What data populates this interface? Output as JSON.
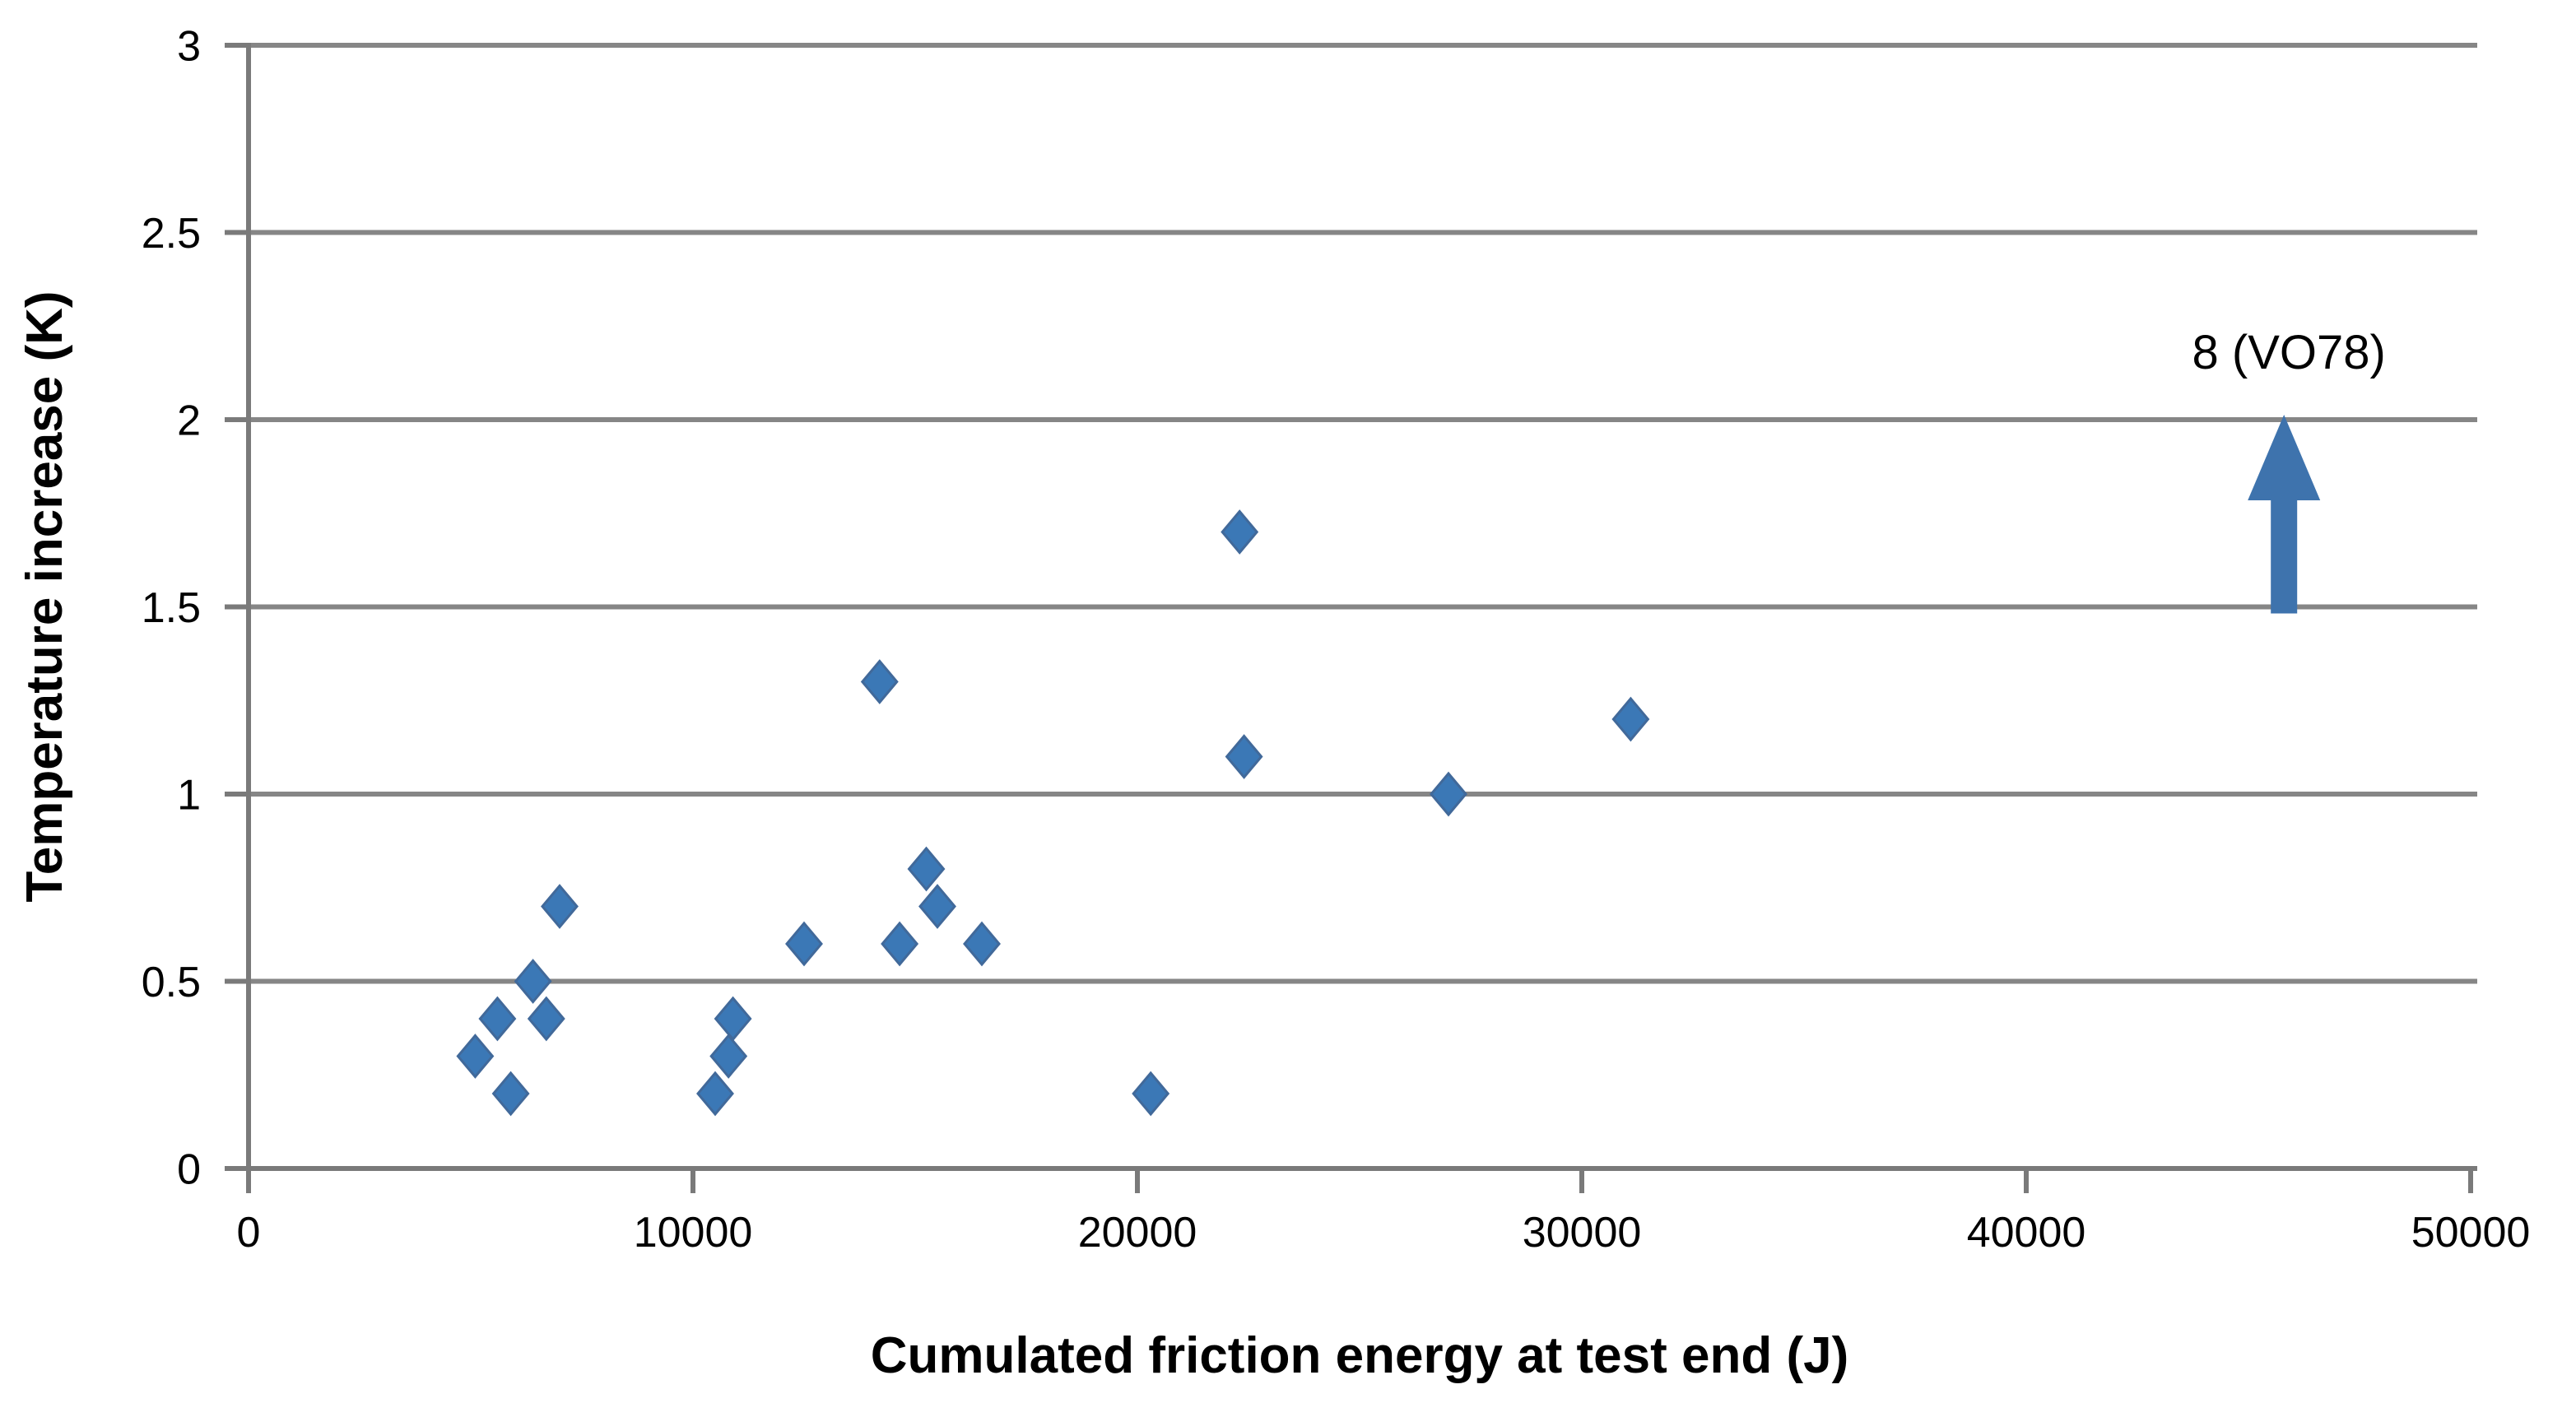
{
  "chart_data": {
    "type": "scatter",
    "title": "",
    "xlabel": "Cumulated friction energy at test end (J)",
    "ylabel": "Temperature increase (K)",
    "xlim": [
      0,
      50000
    ],
    "ylim": [
      0,
      3
    ],
    "x_tick_values": [
      0,
      10000,
      20000,
      30000,
      40000,
      50000
    ],
    "x_tick_labels": [
      "0",
      "10000",
      "20000",
      "30000",
      "40000",
      "50000"
    ],
    "y_tick_values": [
      0,
      0.5,
      1,
      1.5,
      2,
      2.5,
      3
    ],
    "y_tick_labels": [
      "0",
      "0.5",
      "1",
      "1.5",
      "2",
      "2.5",
      "3"
    ],
    "grid": "horizontal-only",
    "legend": "none",
    "marker": "diamond",
    "series": [
      {
        "name": "temperature-increase-vs-friction-energy",
        "points": [
          [
            5100,
            0.3
          ],
          [
            5600,
            0.4
          ],
          [
            5900,
            0.2
          ],
          [
            6400,
            0.5
          ],
          [
            6700,
            0.4
          ],
          [
            7000,
            0.7
          ],
          [
            10500,
            0.2
          ],
          [
            10800,
            0.3
          ],
          [
            10900,
            0.4
          ],
          [
            12500,
            0.6
          ],
          [
            14200,
            1.3
          ],
          [
            14650,
            0.6
          ],
          [
            15250,
            0.8
          ],
          [
            15500,
            0.7
          ],
          [
            16500,
            0.6
          ],
          [
            20300,
            0.2
          ],
          [
            22300,
            1.7
          ],
          [
            22400,
            1.1
          ],
          [
            27000,
            1.0
          ],
          [
            31100,
            1.2
          ]
        ]
      }
    ],
    "annotation": {
      "text": "8 (VO78)",
      "x": 45800,
      "arrow_from_y": 1.5,
      "arrow_to_y": 2.0,
      "meaning": "off-scale point indicated by upward arrow"
    },
    "colors": {
      "marker_fill": "#3b78b6",
      "marker_edge": "#41699a",
      "arrow": "#3e73ad",
      "gridline": "#868686",
      "axis": "#7a7a7a",
      "text": "#000000",
      "background": "#ffffff"
    }
  }
}
